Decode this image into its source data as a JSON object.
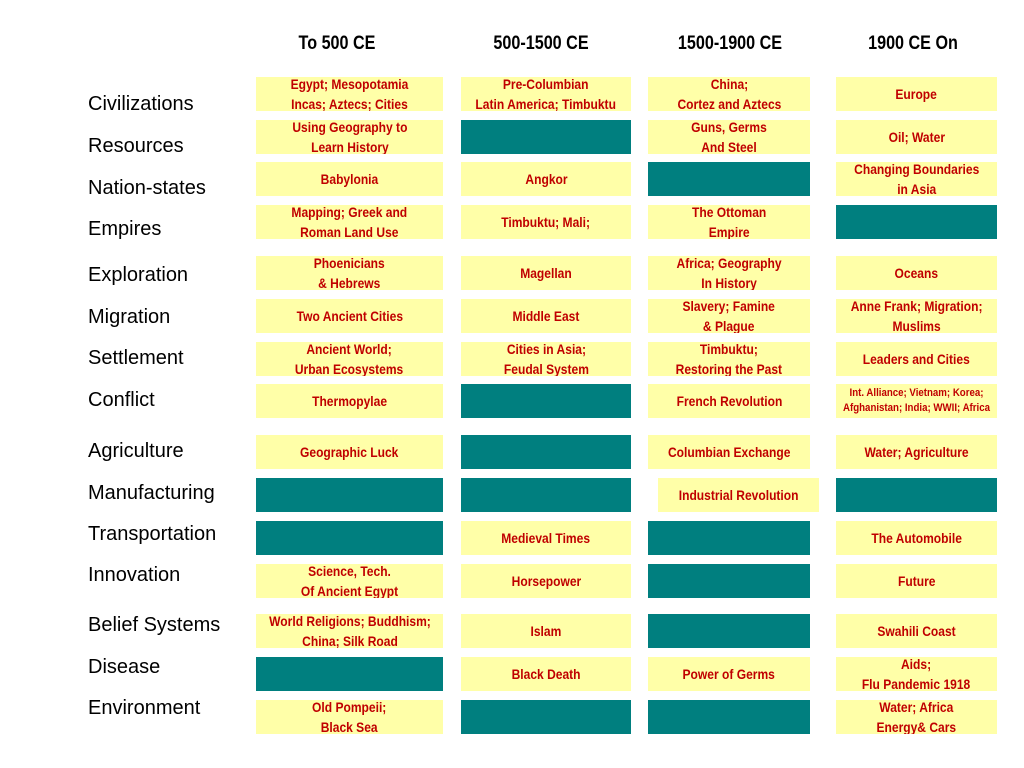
{
  "columns": [
    "To 500 CE",
    "500-1500 CE",
    "1500-1900 CE",
    "1900 CE On"
  ],
  "rows": [
    {
      "label": "Civilizations",
      "cells": [
        "Egypt; Mesopotamia\nIncas; Aztecs; Cities",
        "Pre-Columbian\nLatin America; Timbuktu",
        "China;\nCortez and Aztecs",
        "Europe"
      ]
    },
    {
      "label": "Resources",
      "cells": [
        "Using Geography to\nLearn History",
        null,
        "Guns, Germs\nAnd Steel",
        "Oil; Water"
      ]
    },
    {
      "label": "Nation-states",
      "cells": [
        "Babylonia",
        "Angkor",
        null,
        "Changing Boundaries\nin Asia"
      ]
    },
    {
      "label": "Empires",
      "cells": [
        "Mapping; Greek and\nRoman Land Use",
        "Timbuktu; Mali;",
        "The Ottoman\nEmpire",
        null
      ]
    },
    {
      "label": "Exploration",
      "cells": [
        "Phoenicians\n& Hebrews",
        "Magellan",
        "Africa; Geography\nIn History",
        "Oceans"
      ]
    },
    {
      "label": "Migration",
      "cells": [
        "Two Ancient Cities",
        "Middle East",
        "Slavery; Famine\n& Plague",
        "Anne Frank; Migration;\nMuslims"
      ]
    },
    {
      "label": "Settlement",
      "cells": [
        "Ancient World;\nUrban Ecosystems",
        "Cities in Asia;\nFeudal System",
        "Timbuktu;\nRestoring the Past",
        "Leaders and Cities"
      ]
    },
    {
      "label": "Conflict",
      "cells": [
        "Thermopylae",
        null,
        "French Revolution",
        "Int. Alliance; Vietnam; Korea;\nAfghanistan; India; WWII; Africa"
      ]
    },
    {
      "label": "Agriculture",
      "cells": [
        "Geographic Luck",
        null,
        "Columbian Exchange",
        "Water; Agriculture"
      ]
    },
    {
      "label": "Manufacturing",
      "cells": [
        null,
        null,
        "Industrial Revolution",
        null
      ]
    },
    {
      "label": "Transportation",
      "cells": [
        null,
        "Medieval Times",
        null,
        "The Automobile"
      ]
    },
    {
      "label": "Innovation",
      "cells": [
        "Science, Tech.\nOf Ancient Egypt",
        "Horsepower",
        null,
        "Future"
      ]
    },
    {
      "label": "Belief Systems",
      "cells": [
        "World Religions; Buddhism;\nChina; Silk Road",
        "Islam",
        null,
        "Swahili Coast"
      ]
    },
    {
      "label": "Disease",
      "cells": [
        null,
        "Black Death",
        "Power of Germs",
        "Aids;\nFlu Pandemic 1918"
      ]
    },
    {
      "label": "Environment",
      "cells": [
        "Old Pompeii;\nBlack Sea",
        null,
        null,
        "Water; Africa\nEnergy& Cars"
      ]
    }
  ],
  "colors": {
    "text_cell": "#ffffa8",
    "empty_cell": "#007f7f",
    "cell_text": "#c00000"
  }
}
